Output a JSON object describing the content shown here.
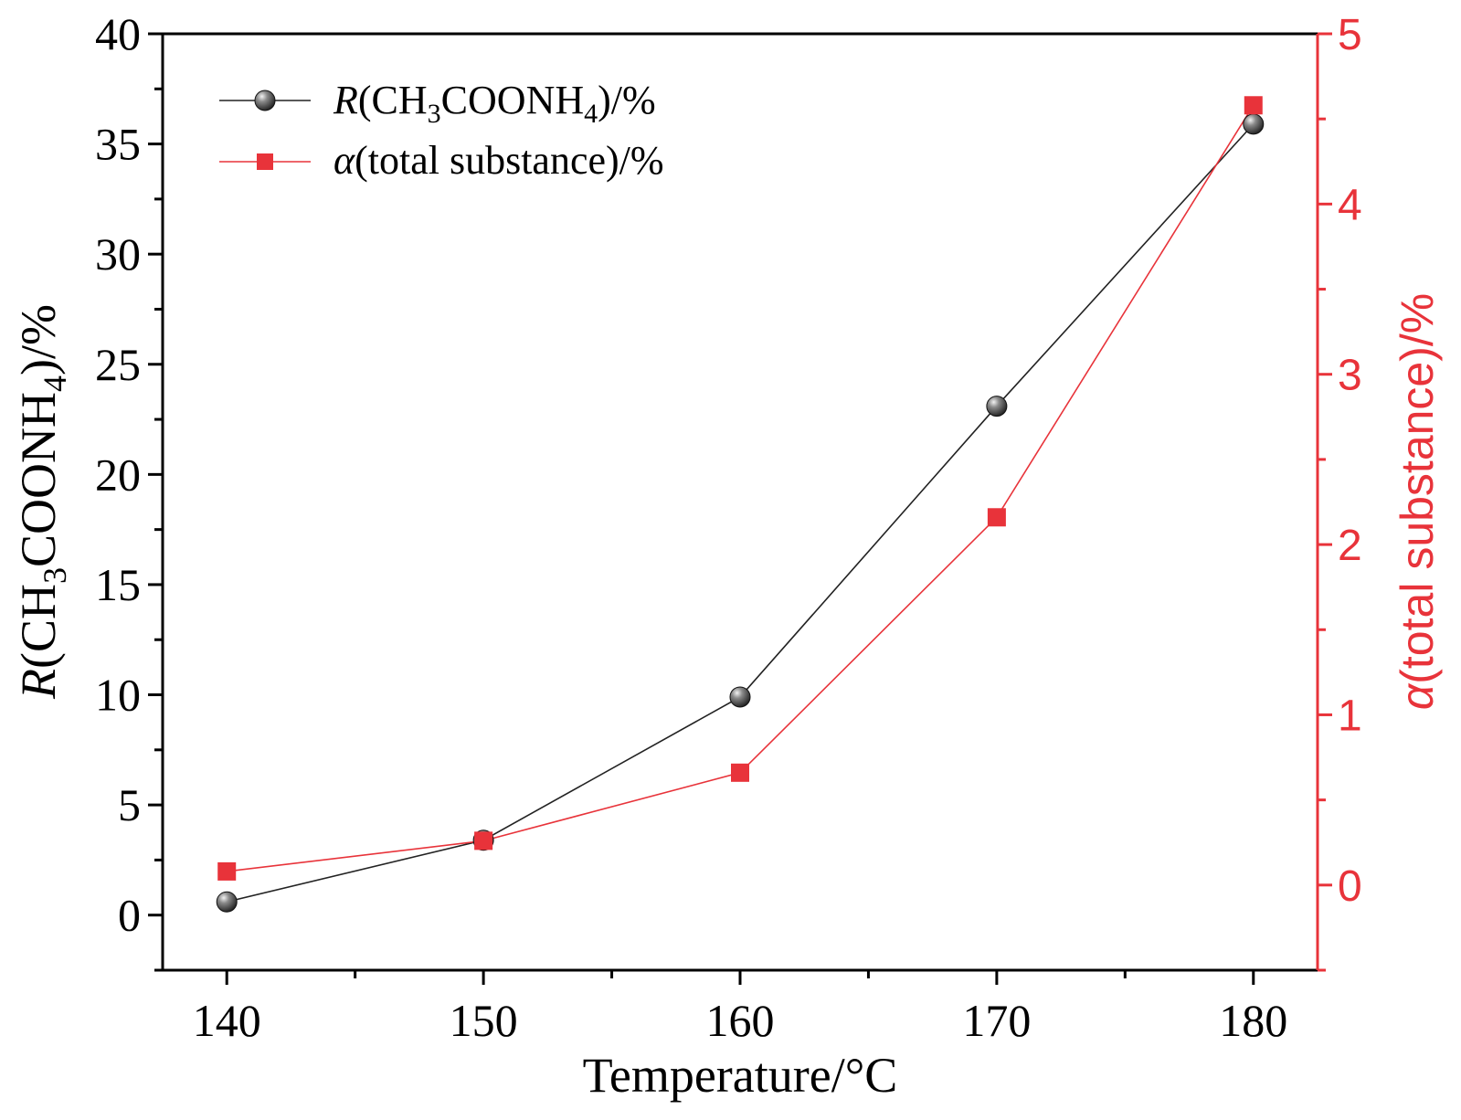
{
  "chart_data": {
    "type": "line",
    "title": "",
    "x": [
      140,
      150,
      160,
      170,
      180
    ],
    "xlabel": "Temperature/°C",
    "xlim": [
      137.5,
      182.5
    ],
    "xticks": [
      140,
      150,
      160,
      170,
      180
    ],
    "ylabel_left": {
      "italic": "R",
      "text": "(CH",
      "sub1": "3",
      "text2": "COONH",
      "sub2": "4",
      "text3": ")/%"
    },
    "ylim_left": [
      -2.5,
      40
    ],
    "yticks_left": [
      0,
      5,
      10,
      15,
      20,
      25,
      30,
      35,
      40
    ],
    "ylabel_right": {
      "italic": "α",
      "text": "(total substance)/%"
    },
    "ylim_right": [
      -0.5,
      5
    ],
    "yticks_right": [
      0,
      1,
      2,
      3,
      4,
      5
    ],
    "series": [
      {
        "name": "R(CH3COONH4)/%",
        "legend": {
          "italic": "R",
          "text": "(CH",
          "sub1": "3",
          "text2": "COONH",
          "sub2": "4",
          "text3": ")/%"
        },
        "axis": "left",
        "marker": "sphere",
        "color": "#222222",
        "values": [
          0.6,
          3.4,
          9.9,
          23.1,
          35.9
        ]
      },
      {
        "name": "α(total substance)/%",
        "legend": {
          "italic": "α",
          "text": "(total substance)/%"
        },
        "axis": "right",
        "marker": "square",
        "color": "#e8333a",
        "values": [
          0.08,
          0.26,
          0.66,
          2.16,
          4.58
        ]
      }
    ],
    "legend_position": "top-left",
    "grid": false
  }
}
